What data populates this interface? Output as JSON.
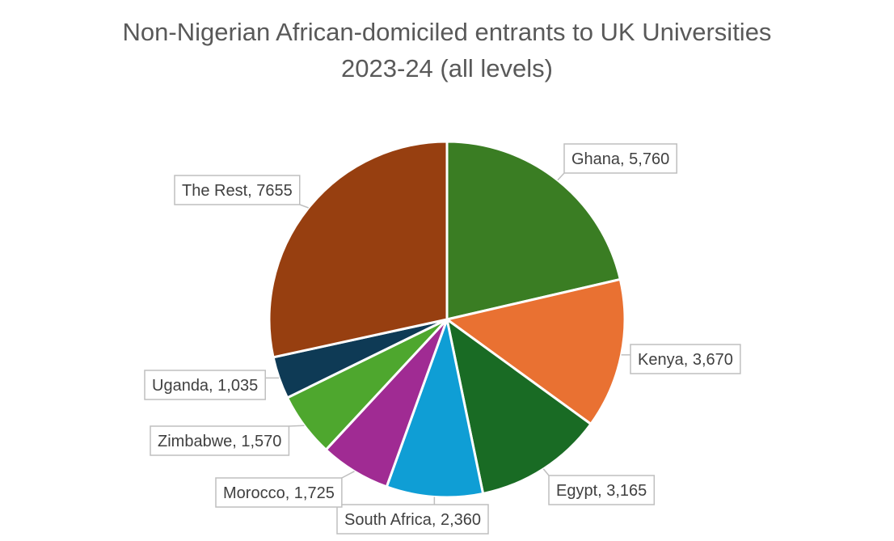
{
  "chart_data": {
    "type": "pie",
    "title_lines": [
      "Non-Nigerian African-domiciled entrants to UK Universities",
      "2023-24 (all levels)"
    ],
    "categories": [
      "Ghana",
      "Kenya",
      "Egypt",
      "South Africa",
      "Morocco",
      "Zimbabwe",
      "Uganda",
      "The Rest"
    ],
    "values": [
      5760,
      3670,
      3165,
      2360,
      1725,
      1570,
      1035,
      7655
    ],
    "data_labels": [
      "Ghana, 5,760",
      "Kenya, 3,670",
      "Egypt, 3,165",
      "South Africa, 2,360",
      "Morocco, 1,725",
      "Zimbabwe, 1,570",
      "Uganda, 1,035",
      "The Rest, 7655"
    ],
    "colors": [
      "#3a7d23",
      "#e97132",
      "#196b24",
      "#0f9ed5",
      "#a02b93",
      "#4ea72e",
      "#0e3a55",
      "#973f10"
    ],
    "legend": "none"
  }
}
